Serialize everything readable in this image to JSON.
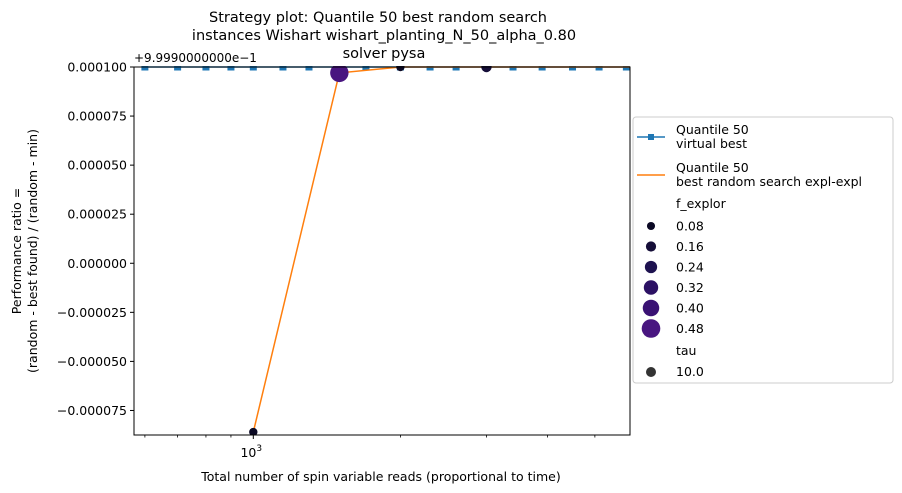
{
  "chart_data": {
    "type": "line",
    "title_lines": [
      "Strategy plot: Quantile 50 best random search",
      "instances Wishart wishart_planting_N_50_alpha_0.80",
      "solver pysa"
    ],
    "offset_label": "+9.9990000000e−1",
    "xlabel": "Total number of spin variable reads (proportional to time)",
    "ylabel_lines": [
      "Performance ratio =",
      "(random - best found) / (random - min)"
    ],
    "x_scale": "log",
    "xlim": [
      570,
      5900
    ],
    "ylim": [
      -8.75e-05,
      0.0001
    ],
    "x_ticks": [
      {
        "value": 1000,
        "label_base": "10",
        "label_exp": "3"
      }
    ],
    "x_minor_ticks": [
      600,
      700,
      800,
      900,
      2000,
      3000,
      4000,
      5000
    ],
    "y_ticks": [
      {
        "value": 0.0001,
        "label": "0.000100"
      },
      {
        "value": 7.5e-05,
        "label": "0.000075"
      },
      {
        "value": 5e-05,
        "label": "0.000050"
      },
      {
        "value": 2.5e-05,
        "label": "0.000025"
      },
      {
        "value": 0.0,
        "label": "0.000000"
      },
      {
        "value": -2.5e-05,
        "label": "−0.000025"
      },
      {
        "value": -5e-05,
        "label": "−0.000050"
      },
      {
        "value": -7.5e-05,
        "label": "−0.000075"
      }
    ],
    "grid": false,
    "legend_placement": "outside right",
    "series": [
      {
        "name": "Quantile 50\n virtual best",
        "color": "#1f77b4",
        "marker": "square",
        "x": [
          600,
          700,
          800,
          900,
          1000,
          1150,
          1300,
          1500,
          1700,
          2000,
          2300,
          2600,
          3000,
          3400,
          3900,
          4500,
          5100,
          5800
        ],
        "y": [
          0.0001,
          0.0001,
          0.0001,
          0.0001,
          0.0001,
          0.0001,
          0.0001,
          0.0001,
          0.0001,
          0.0001,
          0.0001,
          0.0001,
          0.0001,
          0.0001,
          0.0001,
          0.0001,
          0.0001,
          0.0001
        ]
      },
      {
        "name": "Quantile 50\n best random search expl-expl",
        "color": "#ff7f0e",
        "marker": "none",
        "x": [
          1000,
          1500,
          2000,
          3000,
          5900
        ],
        "y": [
          -8.6e-05,
          9.7e-05,
          0.0001,
          0.0001,
          0.0001
        ]
      }
    ],
    "scatter_points": [
      {
        "x": 1000,
        "y": -8.6e-05,
        "f_explor": 0.08,
        "color": "#0b0924"
      },
      {
        "x": 1500,
        "y": 9.7e-05,
        "f_explor": 0.48,
        "color": "#491680"
      },
      {
        "x": 2000,
        "y": 0.0001,
        "f_explor": 0.08,
        "color": "#0b0924"
      },
      {
        "x": 3000,
        "y": 0.0001,
        "f_explor": 0.16,
        "color": "#150e38"
      }
    ],
    "legend": {
      "hue_title": "f_explor",
      "hue_entries": [
        {
          "label": "0.08",
          "color": "#0b0924",
          "size_rank": 1
        },
        {
          "label": "0.16",
          "color": "#150e38",
          "size_rank": 2
        },
        {
          "label": "0.24",
          "color": "#1e1250",
          "size_rank": 3
        },
        {
          "label": "0.32",
          "color": "#2c1164",
          "size_rank": 4
        },
        {
          "label": "0.40",
          "color": "#3a1274",
          "size_rank": 5
        },
        {
          "label": "0.48",
          "color": "#491680",
          "size_rank": 6
        }
      ],
      "size_title": "tau",
      "size_entries": [
        {
          "label": "10.0",
          "color": "#333333"
        }
      ]
    }
  }
}
